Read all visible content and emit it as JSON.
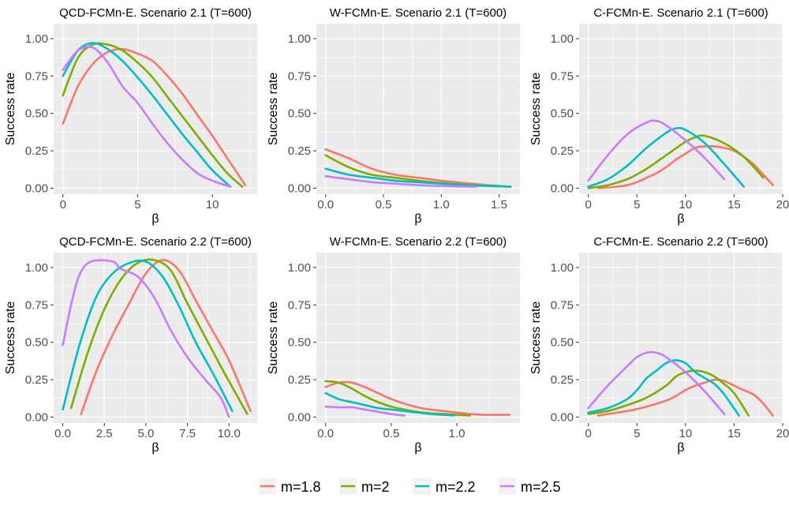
{
  "chart_data": {
    "type": "line",
    "ylabel": "Success rate",
    "xlabel": "β",
    "ylim": [
      -0.04,
      1.1
    ],
    "yticks": [
      0,
      0.25,
      0.5,
      0.75,
      1.0
    ],
    "ytick_labels": [
      "0.00",
      "0.25",
      "0.50",
      "0.75",
      "1.00"
    ],
    "legend": {
      "position": "bottom",
      "series": [
        {
          "name": "m=1.8",
          "color": "#F8766D"
        },
        {
          "name": "m=2",
          "color": "#7CAE00"
        },
        {
          "name": "m=2.2",
          "color": "#00BFC4"
        },
        {
          "name": "m=2.5",
          "color": "#C77CFF"
        }
      ]
    },
    "panels": [
      {
        "title": "QCD-FCMn-E. Scenario 2.1 (T=600)",
        "xlim": [
          -0.62,
          13.0
        ],
        "xticks": [
          0,
          5,
          10
        ],
        "xtick_labels": [
          "0",
          "5",
          "10"
        ],
        "series": [
          {
            "name": "m=1.8",
            "x": [
              0,
              1,
              2,
              3,
              4,
              5,
              6,
              7,
              8,
              9,
              10,
              11,
              12.2
            ],
            "y": [
              0.43,
              0.68,
              0.83,
              0.91,
              0.93,
              0.9,
              0.85,
              0.75,
              0.63,
              0.49,
              0.35,
              0.2,
              0.02
            ]
          },
          {
            "name": "m=2",
            "x": [
              0,
              1,
              2,
              3,
              4,
              5,
              6,
              7,
              8,
              9,
              10,
              11,
              12
            ],
            "y": [
              0.62,
              0.87,
              0.96,
              0.96,
              0.92,
              0.84,
              0.74,
              0.61,
              0.48,
              0.35,
              0.22,
              0.1,
              0.01
            ]
          },
          {
            "name": "m=2.2",
            "x": [
              0,
              1,
              2,
              3,
              4,
              5,
              6,
              7,
              8,
              9,
              10,
              11.2
            ],
            "y": [
              0.75,
              0.92,
              0.97,
              0.93,
              0.85,
              0.74,
              0.62,
              0.49,
              0.36,
              0.24,
              0.12,
              0.01
            ]
          },
          {
            "name": "m=2.5",
            "x": [
              0,
              1,
              2,
              3,
              4,
              5,
              6,
              7,
              8,
              9,
              10,
              11.2
            ],
            "y": [
              0.79,
              0.92,
              0.94,
              0.84,
              0.68,
              0.57,
              0.43,
              0.3,
              0.19,
              0.1,
              0.05,
              0.01
            ]
          }
        ]
      },
      {
        "title": "W-FCMn-E. Scenario 2.1 (T=600)",
        "xlim": [
          -0.08,
          1.68
        ],
        "xticks": [
          0,
          0.5,
          1.0,
          1.5
        ],
        "xtick_labels": [
          "0.0",
          "0.5",
          "1.0",
          "1.5"
        ],
        "series": [
          {
            "name": "m=1.8",
            "x": [
              0,
              0.2,
              0.4,
              0.6,
              0.8,
              1.0,
              1.2,
              1.4,
              1.6
            ],
            "y": [
              0.26,
              0.2,
              0.13,
              0.09,
              0.07,
              0.05,
              0.035,
              0.02,
              0.01
            ]
          },
          {
            "name": "m=2",
            "x": [
              0,
              0.2,
              0.4,
              0.6,
              0.8,
              1.0,
              1.2,
              1.4,
              1.6
            ],
            "y": [
              0.22,
              0.14,
              0.09,
              0.07,
              0.05,
              0.035,
              0.025,
              0.015,
              0.01
            ]
          },
          {
            "name": "m=2.2",
            "x": [
              0,
              0.2,
              0.4,
              0.6,
              0.8,
              1.0,
              1.2,
              1.4,
              1.6
            ],
            "y": [
              0.13,
              0.09,
              0.07,
              0.05,
              0.04,
              0.03,
              0.02,
              0.015,
              0.01
            ]
          },
          {
            "name": "m=2.5",
            "x": [
              0,
              0.2,
              0.4,
              0.6,
              0.8,
              1.0,
              1.2,
              1.3
            ],
            "y": [
              0.08,
              0.06,
              0.04,
              0.03,
              0.02,
              0.015,
              0.01,
              0.01
            ]
          }
        ]
      },
      {
        "title": "C-FCMn-E. Scenario 2.1 (T=600)",
        "xlim": [
          -0.95,
          20.0
        ],
        "xticks": [
          0,
          5,
          10,
          15,
          20
        ],
        "xtick_labels": [
          "0",
          "5",
          "10",
          "15",
          "20"
        ],
        "series": [
          {
            "name": "m=1.8",
            "x": [
              1,
              3,
              4,
              5,
              6,
              7,
              8,
              9,
              10,
              11,
              12,
              13,
              14,
              15,
              16,
              17,
              18,
              19
            ],
            "y": [
              0.0,
              0.01,
              0.02,
              0.04,
              0.07,
              0.1,
              0.14,
              0.19,
              0.23,
              0.27,
              0.28,
              0.28,
              0.27,
              0.25,
              0.21,
              0.16,
              0.09,
              0.02
            ]
          },
          {
            "name": "m=2",
            "x": [
              0,
              2,
              4,
              6,
              8,
              10,
              11,
              12,
              14,
              16,
              18
            ],
            "y": [
              0.0,
              0.02,
              0.06,
              0.13,
              0.22,
              0.31,
              0.34,
              0.35,
              0.3,
              0.21,
              0.07
            ]
          },
          {
            "name": "m=2.2",
            "x": [
              0,
              2,
              4,
              6,
              8,
              9,
              10,
              12,
              14,
              16
            ],
            "y": [
              0.01,
              0.06,
              0.15,
              0.27,
              0.37,
              0.4,
              0.39,
              0.3,
              0.16,
              0.01
            ]
          },
          {
            "name": "m=2.5",
            "x": [
              0,
              2,
              4,
              6,
              7,
              8,
              10,
              12,
              14
            ],
            "y": [
              0.05,
              0.22,
              0.36,
              0.44,
              0.45,
              0.42,
              0.32,
              0.2,
              0.06
            ]
          }
        ]
      },
      {
        "title": "QCD-FCMn-E. Scenario 2.2 (T=600)",
        "xlim": [
          -0.55,
          11.7
        ],
        "xticks": [
          0,
          2.5,
          5.0,
          7.5,
          10.0
        ],
        "xtick_labels": [
          "0.0",
          "2.5",
          "5.0",
          "7.5",
          "10.0"
        ],
        "series": [
          {
            "name": "m=1.8",
            "x": [
              1.1,
              2,
              3,
              4,
              5,
              6,
              7,
              8,
              9,
              10,
              11.3
            ],
            "y": [
              0.02,
              0.3,
              0.55,
              0.76,
              0.96,
              1.05,
              0.98,
              0.78,
              0.58,
              0.38,
              0.04
            ]
          },
          {
            "name": "m=2",
            "x": [
              0.5,
              1.5,
              2.5,
              3.5,
              4.5,
              5.5,
              6.5,
              7.5,
              8.5,
              9.5,
              10.2,
              11.1
            ],
            "y": [
              0.06,
              0.43,
              0.72,
              0.92,
              1.03,
              1.05,
              0.98,
              0.76,
              0.55,
              0.34,
              0.2,
              0.02
            ]
          },
          {
            "name": "m=2.2",
            "x": [
              0,
              1,
              2,
              3,
              4,
              5,
              6,
              7,
              8,
              9,
              10.2
            ],
            "y": [
              0.05,
              0.48,
              0.8,
              0.96,
              1.03,
              1.04,
              0.94,
              0.74,
              0.5,
              0.3,
              0.04
            ]
          },
          {
            "name": "m=2.5",
            "x": [
              0,
              0.5,
              1,
              1.7,
              3,
              3.5,
              4.5,
              5.5,
              6.5,
              7.5,
              8.5,
              9.5,
              10
            ],
            "y": [
              0.48,
              0.75,
              0.95,
              1.04,
              1.04,
              0.99,
              0.94,
              0.8,
              0.58,
              0.4,
              0.26,
              0.13,
              0.0
            ]
          }
        ]
      },
      {
        "title": "W-FCMn-E. Scenario 2.2 (T=600)",
        "xlim": [
          -0.07,
          1.48
        ],
        "xticks": [
          0,
          0.5,
          1.0
        ],
        "xtick_labels": [
          "0.0",
          "0.5",
          "1.0"
        ],
        "series": [
          {
            "name": "m=1.8",
            "x": [
              0,
              0.1,
              0.2,
              0.3,
              0.4,
              0.5,
              0.6,
              0.7,
              0.8,
              0.9,
              1.0,
              1.1,
              1.2,
              1.3,
              1.4
            ],
            "y": [
              0.2,
              0.23,
              0.23,
              0.2,
              0.16,
              0.12,
              0.09,
              0.065,
              0.05,
              0.04,
              0.03,
              0.02,
              0.015,
              0.015,
              0.015
            ]
          },
          {
            "name": "m=2",
            "x": [
              0,
              0.1,
              0.2,
              0.3,
              0.4,
              0.5,
              0.6,
              0.7,
              0.8,
              0.9,
              1.0,
              1.1
            ],
            "y": [
              0.24,
              0.23,
              0.19,
              0.14,
              0.1,
              0.07,
              0.05,
              0.035,
              0.025,
              0.02,
              0.015,
              0.01
            ]
          },
          {
            "name": "m=2.2",
            "x": [
              0,
              0.1,
              0.2,
              0.3,
              0.4,
              0.5,
              0.6,
              0.7,
              0.8,
              0.9,
              0.98
            ],
            "y": [
              0.16,
              0.12,
              0.1,
              0.08,
              0.06,
              0.05,
              0.04,
              0.03,
              0.02,
              0.015,
              0.01
            ]
          },
          {
            "name": "m=2.5",
            "x": [
              0,
              0.1,
              0.2,
              0.3,
              0.4,
              0.5,
              0.6
            ],
            "y": [
              0.07,
              0.065,
              0.065,
              0.05,
              0.035,
              0.02,
              0.01
            ]
          }
        ]
      },
      {
        "title": "C-FCMn-E. Scenario 2.2 (T=600)",
        "xlim": [
          -0.95,
          20.0
        ],
        "xticks": [
          0,
          5,
          10,
          15,
          20
        ],
        "xtick_labels": [
          "0",
          "5",
          "10",
          "15",
          "20"
        ],
        "series": [
          {
            "name": "m=1.8",
            "x": [
              1,
              2,
              4,
              6,
              8,
              9,
              10,
              11,
              12,
              13,
              14,
              15,
              16,
              17,
              18,
              19
            ],
            "y": [
              0.01,
              0.02,
              0.04,
              0.07,
              0.11,
              0.14,
              0.18,
              0.21,
              0.23,
              0.25,
              0.24,
              0.21,
              0.18,
              0.15,
              0.09,
              0.01
            ]
          },
          {
            "name": "m=2",
            "x": [
              0,
              2,
              4,
              6,
              8,
              9,
              10,
              11,
              12,
              13,
              14,
              15,
              16.5
            ],
            "y": [
              0.02,
              0.04,
              0.08,
              0.13,
              0.21,
              0.27,
              0.3,
              0.31,
              0.3,
              0.27,
              0.22,
              0.16,
              0.01
            ]
          },
          {
            "name": "m=2.2",
            "x": [
              0,
              2,
              4,
              5,
              6,
              7,
              8,
              9,
              10,
              11,
              12,
              13,
              14,
              15.5
            ],
            "y": [
              0.03,
              0.06,
              0.12,
              0.18,
              0.26,
              0.31,
              0.36,
              0.38,
              0.36,
              0.3,
              0.26,
              0.22,
              0.15,
              0.01
            ]
          },
          {
            "name": "m=2.5",
            "x": [
              0,
              2,
              4,
              5,
              6,
              7,
              8,
              10,
              12,
              14
            ],
            "y": [
              0.06,
              0.21,
              0.34,
              0.4,
              0.43,
              0.43,
              0.4,
              0.3,
              0.17,
              0.02
            ]
          }
        ]
      }
    ]
  }
}
